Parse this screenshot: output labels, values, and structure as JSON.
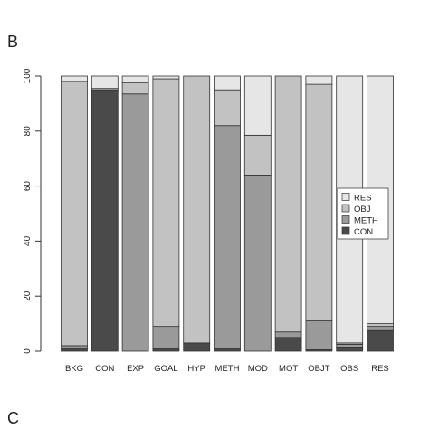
{
  "panels": {
    "top_letter": "B",
    "bottom_letter": "C"
  },
  "chart_data": {
    "type": "bar",
    "stacked": true,
    "categories": [
      "BKG",
      "CON",
      "EXP",
      "GOAL",
      "HYP",
      "METH",
      "MOD",
      "MOT",
      "OBJT",
      "OBS",
      "RES"
    ],
    "ylim": [
      0,
      100
    ],
    "yticks": [
      0,
      20,
      40,
      60,
      80,
      100
    ],
    "series": [
      {
        "name": "CON",
        "color": "#4a4a4a",
        "values": [
          1,
          95,
          0,
          1,
          3,
          1,
          0,
          5,
          0.5,
          1.5,
          7.5
        ]
      },
      {
        "name": "METH",
        "color": "#9a9a9a",
        "values": [
          1,
          0,
          93.5,
          8,
          0,
          81,
          64,
          2,
          10.5,
          1,
          1.5
        ]
      },
      {
        "name": "OBJ",
        "color": "#c2c2c2",
        "values": [
          96,
          0.5,
          4,
          90,
          97,
          13,
          14.5,
          93,
          86,
          0.5,
          1
        ]
      },
      {
        "name": "RES",
        "color": "#e6e6e6",
        "values": [
          2,
          4.5,
          2.5,
          1,
          0,
          5,
          21.5,
          0,
          3,
          97,
          90
        ]
      }
    ],
    "legend": {
      "position": "right-middle",
      "order": [
        "RES",
        "OBJ",
        "METH",
        "CON"
      ]
    },
    "grid": false,
    "title": "",
    "xlabel": "",
    "ylabel": ""
  }
}
